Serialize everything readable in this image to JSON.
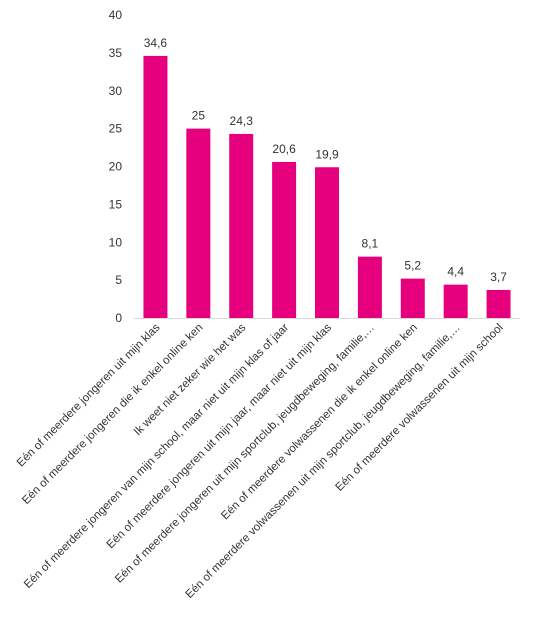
{
  "chart_data": {
    "type": "bar",
    "categories": [
      "Eén of meerdere jongeren uit mijn klas",
      "Eén of meerdere jongeren die ik enkel online ken",
      "Ik weet niet zeker wie het was",
      "Eén of meerdere jongeren van mijn school, maar niet uit mijn klas of jaar",
      "Eén of meerdere jongeren uit mijn jaar, maar niet uit mijn klas",
      "Eén of meerdere jongeren uit mijn sportclub, jeugdbeweging, familie,…",
      "Eén of meerdere volwassenen die ik enkel online ken",
      "Eén of meerdere volwassenen uit mijn sportclub, jeugdbeweging, familie,…",
      "Eén of meerdere volwassenen uit mijn school"
    ],
    "values": [
      34.6,
      25,
      24.3,
      20.6,
      19.9,
      8.1,
      5.2,
      4.4,
      3.7
    ],
    "value_labels": [
      "34,6",
      "25",
      "24,3",
      "20,6",
      "19,9",
      "8,1",
      "5,2",
      "4,4",
      "3,7"
    ],
    "y_ticks": [
      "0",
      "5",
      "10",
      "15",
      "20",
      "25",
      "30",
      "35",
      "40"
    ],
    "ylim": [
      0,
      40
    ],
    "grid": false,
    "legend": "none",
    "bar_color": "#e6007e"
  }
}
